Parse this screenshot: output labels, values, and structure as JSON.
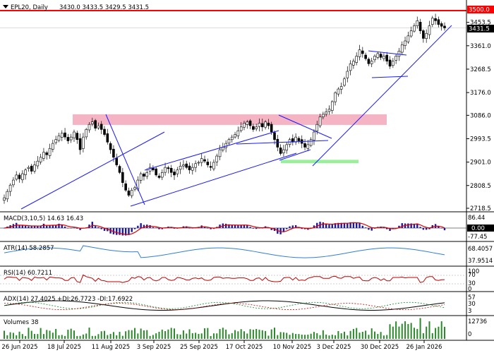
{
  "header": {
    "symbol_label": "EPL20, Daily",
    "ohlc": "3430.0 3433.5 3429.5 3431.5"
  },
  "price": {
    "current": "3431.5",
    "resistance": "3500.0",
    "ticks": [
      "3453.5",
      "3361.0",
      "3268.5",
      "3176.0",
      "3086.0",
      "2993.5",
      "2901.0",
      "2808.5",
      "2718.5"
    ]
  },
  "x_labels": [
    "26 Jun 2025",
    "18 Jul 2025",
    "11 Aug 2025",
    "3 Sep 2025",
    "25 Sep 2025",
    "17 Oct 2025",
    "10 Nov 2025",
    "3 Dec 2025",
    "30 Dec 2025",
    "26 Jan 2026"
  ],
  "panels": {
    "macd": {
      "label": "MACD(3,10,5) 14.63 16.43",
      "ticks": [
        "86.44",
        "0.00",
        "-77.45"
      ]
    },
    "atr": {
      "label": "ATR(14) 58.2857",
      "ticks": [
        "68.4057",
        "37.9514"
      ]
    },
    "rsi": {
      "label": "RSI(14) 60.7211",
      "ticks": [
        "100",
        "70",
        "30",
        "0"
      ]
    },
    "adx": {
      "label": "ADX(14) 27.4025 +DI:26.7723 -DI:17.6922",
      "ticks": [
        "57",
        "30",
        "3"
      ]
    },
    "vol": {
      "label": "Volumes 38",
      "ticks": [
        "12736",
        "0"
      ]
    }
  },
  "colors": {
    "up": "#1a1aa0",
    "down": "#000000",
    "resistance": "#ff0000",
    "zone_top": "#f4b4c4",
    "zone_bottom": "#98f098",
    "trendline": "#1a1aff",
    "macd_signal": "#e00000",
    "atr": "#2f7fd6",
    "rsi": "#c00000",
    "plus_di": "#0a8a2a",
    "minus_di": "#c00000"
  },
  "chart_data": {
    "type": "candlestick",
    "timeframe": "Daily",
    "symbol": "EPL20",
    "closes": [
      2760,
      2785,
      2810,
      2830,
      2850,
      2835,
      2855,
      2870,
      2880,
      2865,
      2890,
      2905,
      2920,
      2940,
      2930,
      2955,
      2975,
      2990,
      3005,
      3015,
      3000,
      2985,
      3000,
      3020,
      2990,
      2950,
      3000,
      3030,
      3050,
      3060,
      3035,
      3045,
      3030,
      3010,
      2980,
      2950,
      2920,
      2890,
      2860,
      2820,
      2790,
      2770,
      2790,
      2800,
      2830,
      2855,
      2845,
      2860,
      2880,
      2870,
      2850,
      2840,
      2860,
      2880,
      2875,
      2860,
      2850,
      2870,
      2885,
      2890,
      2880,
      2870,
      2880,
      2895,
      2900,
      2915,
      2905,
      2890,
      2880,
      2900,
      2925,
      2950,
      2960,
      2975,
      2990,
      3000,
      3010,
      3025,
      3040,
      3055,
      3060,
      3045,
      3030,
      3040,
      3055,
      3040,
      3060,
      3045,
      3020,
      2990,
      2960,
      2935,
      2950,
      2970,
      2990,
      2980,
      3000,
      2985,
      2975,
      2960,
      2970,
      2990,
      3020,
      3050,
      3080,
      3090,
      3100,
      3110,
      3140,
      3175,
      3190,
      3200,
      3230,
      3260,
      3290,
      3300,
      3320,
      3345,
      3330,
      3310,
      3290,
      3300,
      3320,
      3330,
      3315,
      3320,
      3300,
      3280,
      3300,
      3320,
      3340,
      3365,
      3380,
      3400,
      3420,
      3440,
      3460,
      3420,
      3390,
      3410,
      3440,
      3470,
      3460,
      3445,
      3438,
      3431.5
    ],
    "resistance_level": 3500.0,
    "current_price": 3431.5,
    "y_range": [
      2700,
      3520
    ],
    "zones": [
      {
        "name": "resistance zone",
        "price_range": [
          3048,
          3090
        ]
      },
      {
        "name": "support zone",
        "price_range": [
          2897,
          2910
        ]
      }
    ],
    "indicators": {
      "MACD(3,10,5)": [
        14.63,
        16.43
      ],
      "ATR(14)": 58.2857,
      "RSI(14)": 60.7211,
      "ADX(14)": {
        "adx": 27.4025,
        "plus_di": 26.7723,
        "minus_di": 17.6922
      },
      "Volumes": 38
    }
  }
}
